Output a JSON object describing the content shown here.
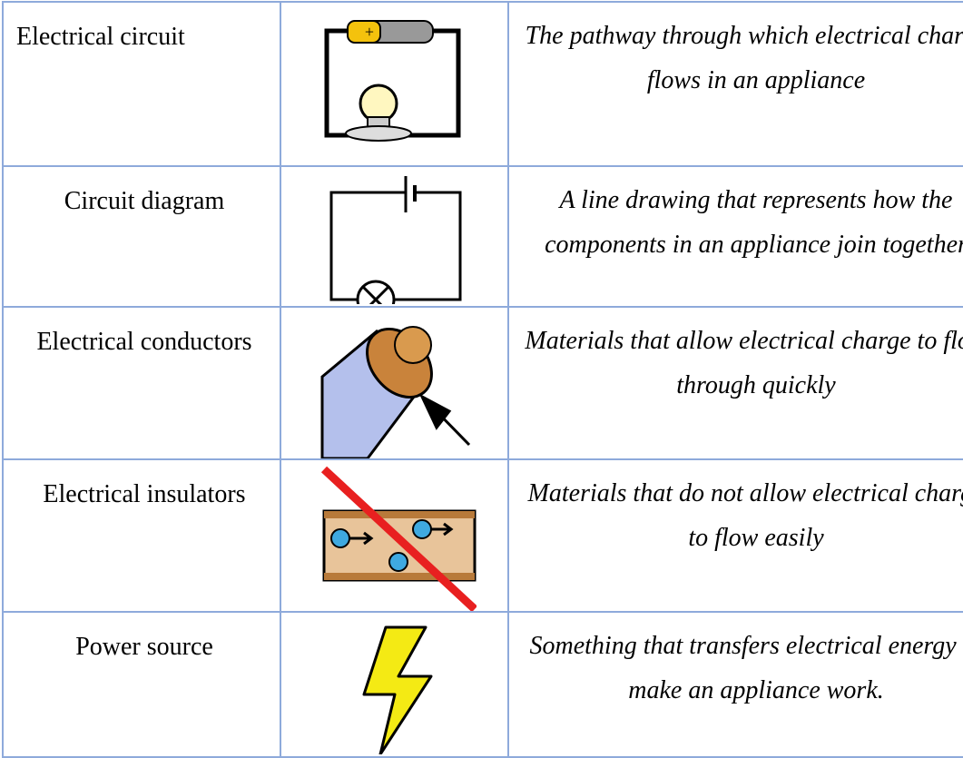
{
  "table": {
    "rows": [
      {
        "term": "Electrical circuit",
        "definition": "The pathway through which electrical charge flows in an appliance"
      },
      {
        "term": "Circuit diagram",
        "definition": "A line drawing that represents how the components in an appliance join together"
      },
      {
        "term": "Electrical conductors",
        "definition": "Materials that allow electrical charge to flow through quickly"
      },
      {
        "term": "Electrical insulators",
        "definition": "Materials that do not allow electrical charge to flow easily"
      },
      {
        "term": "Power source",
        "definition": "Something that transfers electrical energy to make an appliance work."
      }
    ]
  }
}
